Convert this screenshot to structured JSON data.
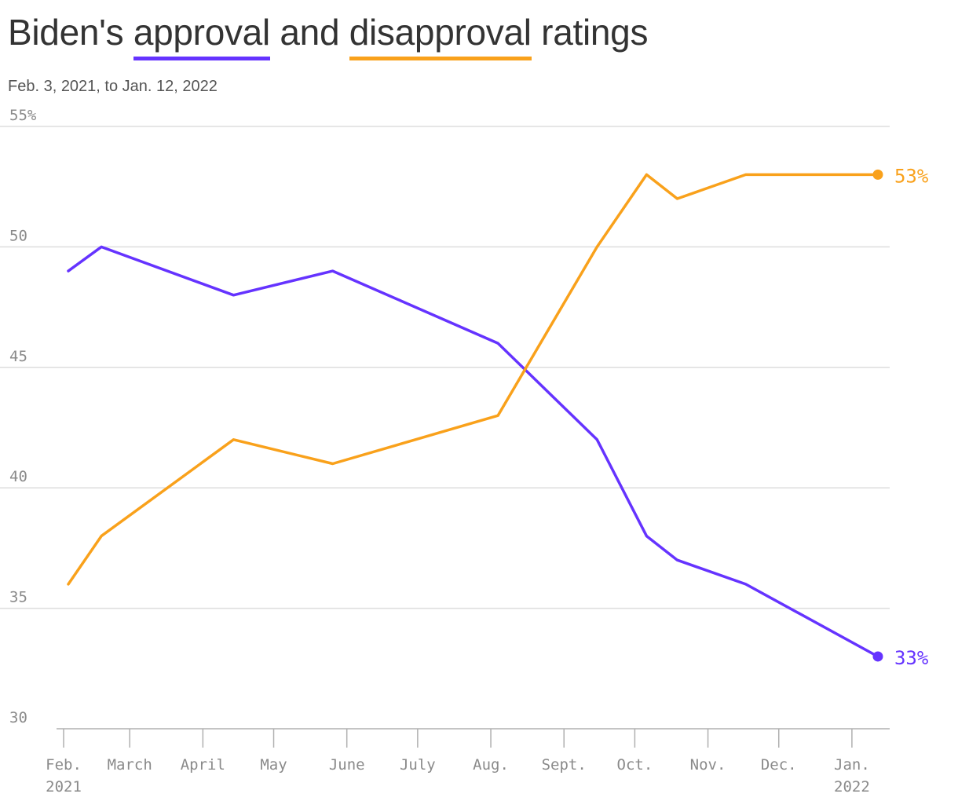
{
  "title": {
    "part1": "Biden's",
    "approval": "approval",
    "part2": "and",
    "disapproval": "disapproval",
    "part3": "ratings"
  },
  "subtitle": "Feb. 3, 2021, to Jan. 12, 2022",
  "colors": {
    "approval": "#6533ff",
    "disapproval": "#f9a11b",
    "grid": "#dddddd",
    "axis": "#b0b0b0",
    "tick_text": "#8a8a8a"
  },
  "chart_data": {
    "type": "line",
    "title": "Biden's approval and disapproval ratings",
    "subtitle": "Feb. 3, 2021, to Jan. 12, 2022",
    "ylim": [
      30,
      55
    ],
    "y_ticks": [
      {
        "value": 55,
        "label": "55%"
      },
      {
        "value": 50,
        "label": "50"
      },
      {
        "value": 45,
        "label": "45"
      },
      {
        "value": 40,
        "label": "40"
      },
      {
        "value": 35,
        "label": "35"
      },
      {
        "value": 30,
        "label": "30"
      }
    ],
    "x_ticks": [
      {
        "date": "2021-02-01",
        "label": "Feb.",
        "sublabel": "2021"
      },
      {
        "date": "2021-03-01",
        "label": "March",
        "sublabel": ""
      },
      {
        "date": "2021-04-01",
        "label": "April",
        "sublabel": ""
      },
      {
        "date": "2021-05-01",
        "label": "May",
        "sublabel": ""
      },
      {
        "date": "2021-06-01",
        "label": "June",
        "sublabel": ""
      },
      {
        "date": "2021-07-01",
        "label": "July",
        "sublabel": ""
      },
      {
        "date": "2021-08-01",
        "label": "Aug.",
        "sublabel": ""
      },
      {
        "date": "2021-09-01",
        "label": "Sept.",
        "sublabel": ""
      },
      {
        "date": "2021-10-01",
        "label": "Oct.",
        "sublabel": ""
      },
      {
        "date": "2021-11-01",
        "label": "Nov.",
        "sublabel": ""
      },
      {
        "date": "2021-12-01",
        "label": "Dec.",
        "sublabel": ""
      },
      {
        "date": "2022-01-01",
        "label": "Jan.",
        "sublabel": "2022"
      }
    ],
    "series": [
      {
        "key": "approval",
        "color": "#6533ff",
        "end_label": "33%",
        "points": [
          {
            "date": "2021-02-03",
            "value": 49
          },
          {
            "date": "2021-02-17",
            "value": 50
          },
          {
            "date": "2021-04-14",
            "value": 48
          },
          {
            "date": "2021-05-26",
            "value": 49
          },
          {
            "date": "2021-08-04",
            "value": 46
          },
          {
            "date": "2021-09-15",
            "value": 42
          },
          {
            "date": "2021-10-06",
            "value": 38
          },
          {
            "date": "2021-10-19",
            "value": 37
          },
          {
            "date": "2021-11-17",
            "value": 36
          },
          {
            "date": "2022-01-12",
            "value": 33
          }
        ]
      },
      {
        "key": "disapproval",
        "color": "#f9a11b",
        "end_label": "53%",
        "points": [
          {
            "date": "2021-02-03",
            "value": 36
          },
          {
            "date": "2021-02-17",
            "value": 38
          },
          {
            "date": "2021-04-14",
            "value": 42
          },
          {
            "date": "2021-05-26",
            "value": 41
          },
          {
            "date": "2021-08-04",
            "value": 43
          },
          {
            "date": "2021-09-15",
            "value": 50
          },
          {
            "date": "2021-10-06",
            "value": 53
          },
          {
            "date": "2021-10-19",
            "value": 52
          },
          {
            "date": "2021-11-17",
            "value": 53
          },
          {
            "date": "2022-01-12",
            "value": 53
          }
        ]
      }
    ],
    "grid": true
  }
}
